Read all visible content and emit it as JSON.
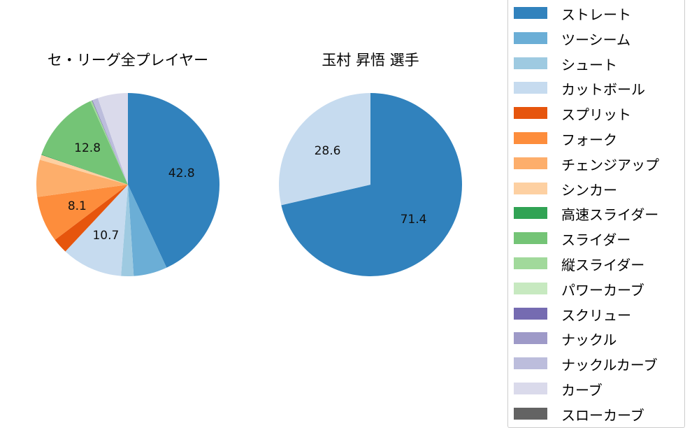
{
  "chart_data": [
    {
      "type": "pie",
      "title": "セ・リーグ全プレイヤー",
      "start_angle": "top, clockwise",
      "categories": [
        "ストレート",
        "ツーシーム",
        "シュート",
        "カットボール",
        "スプリット",
        "フォーク",
        "チェンジアップ",
        "シンカー",
        "高速スライダー",
        "スライダー",
        "縦スライダー",
        "パワーカーブ",
        "スクリュー",
        "ナックル",
        "ナックルカーブ",
        "カーブ",
        "スローカーブ"
      ],
      "values": [
        42.8,
        5.9,
        2.2,
        10.7,
        2.7,
        8.1,
        6.5,
        0.9,
        0.1,
        12.8,
        0.3,
        0.0,
        0.1,
        0.0,
        1.0,
        5.3,
        0.0
      ],
      "labels_shown": [
        "42.8",
        "10.7",
        "8.1",
        "12.8"
      ]
    },
    {
      "type": "pie",
      "title": "玉村 昇悟  選手",
      "start_angle": "top, clockwise",
      "categories": [
        "ストレート",
        "カットボール"
      ],
      "values": [
        71.4,
        28.6
      ],
      "labels_shown": [
        "71.4",
        "28.6"
      ]
    }
  ],
  "titles": {
    "left": "セ・リーグ全プレイヤー",
    "right": "玉村 昇悟  選手"
  },
  "legend": [
    {
      "label": "ストレート",
      "color": "#3182bd"
    },
    {
      "label": "ツーシーム",
      "color": "#6baed6"
    },
    {
      "label": "シュート",
      "color": "#9ecae1"
    },
    {
      "label": "カットボール",
      "color": "#c6dbef"
    },
    {
      "label": "スプリット",
      "color": "#e6550d"
    },
    {
      "label": "フォーク",
      "color": "#fd8d3c"
    },
    {
      "label": "チェンジアップ",
      "color": "#fdae6b"
    },
    {
      "label": "シンカー",
      "color": "#fdd0a2"
    },
    {
      "label": "高速スライダー",
      "color": "#31a354"
    },
    {
      "label": "スライダー",
      "color": "#74c476"
    },
    {
      "label": "縦スライダー",
      "color": "#a1d99b"
    },
    {
      "label": "パワーカーブ",
      "color": "#c7e9c0"
    },
    {
      "label": "スクリュー",
      "color": "#756bb1"
    },
    {
      "label": "ナックル",
      "color": "#9e9ac8"
    },
    {
      "label": "ナックルカーブ",
      "color": "#bcbddc"
    },
    {
      "label": "カーブ",
      "color": "#dadaeb"
    },
    {
      "label": "スローカーブ",
      "color": "#636363"
    }
  ]
}
